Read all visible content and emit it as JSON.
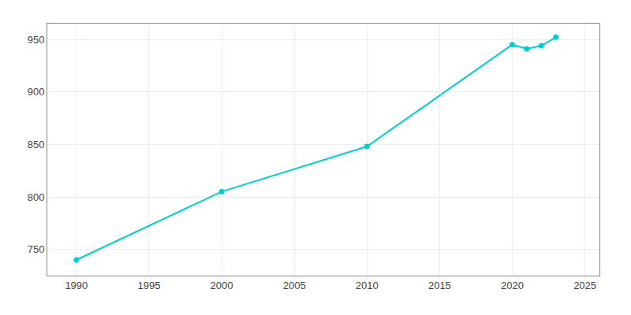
{
  "chart_data": {
    "type": "line",
    "x": [
      1990,
      2000,
      2010,
      2020,
      2021,
      2022,
      2023
    ],
    "values": [
      740,
      805,
      848,
      945,
      941,
      944,
      952
    ],
    "color": "#00CED1",
    "marker": "circle",
    "xlim": [
      1988,
      2026
    ],
    "ylim": [
      725,
      965
    ],
    "xticks": [
      1990,
      1995,
      2000,
      2005,
      2010,
      2015,
      2020,
      2025
    ],
    "yticks": [
      750,
      800,
      850,
      900,
      950
    ],
    "grid": true
  }
}
